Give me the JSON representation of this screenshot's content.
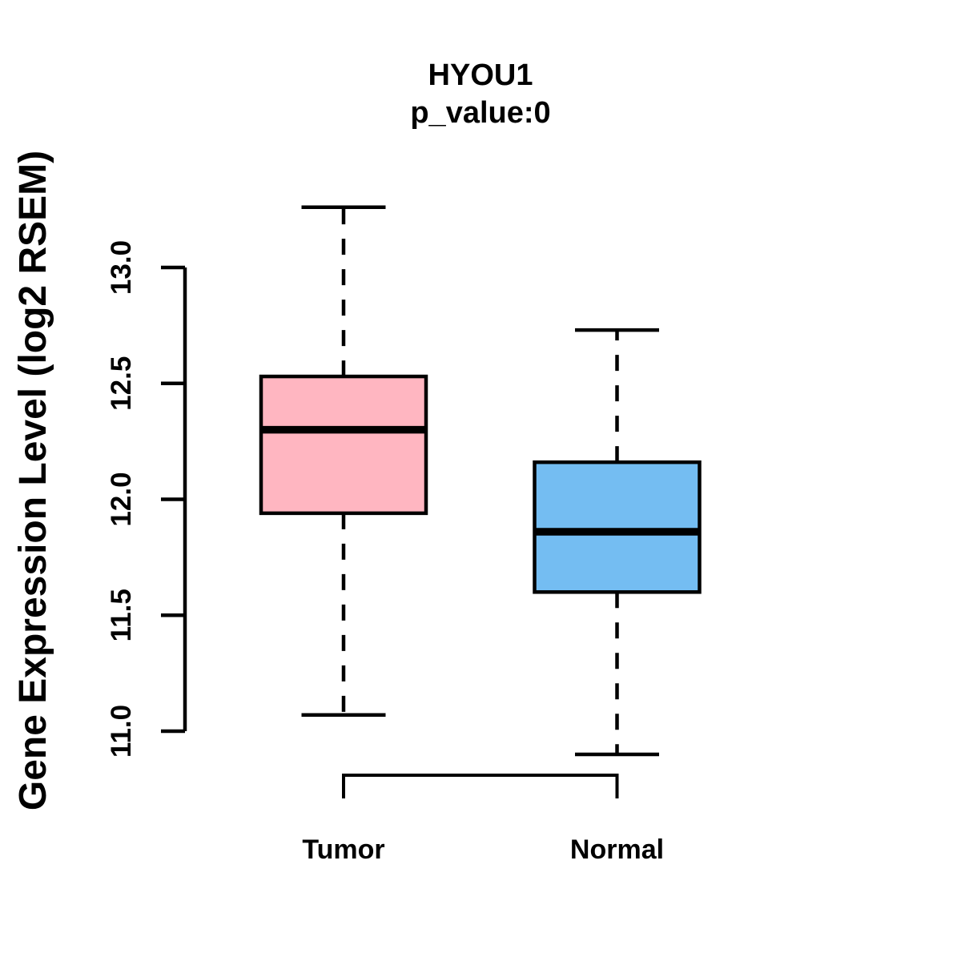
{
  "chart_data": {
    "type": "boxplot",
    "title": "HYOU1",
    "subtitle": "p_value:0",
    "ylabel": "Gene Expression Level (log2 RSEM)",
    "xlabel": "",
    "categories": [
      "Tumor",
      "Normal"
    ],
    "series": [
      {
        "name": "Tumor",
        "lower_whisker": 11.07,
        "q1": 11.94,
        "median": 12.3,
        "q3": 12.53,
        "upper_whisker": 13.26,
        "fill_color": "#FFB6C1"
      },
      {
        "name": "Normal",
        "lower_whisker": 10.9,
        "q1": 11.6,
        "median": 11.86,
        "q3": 12.16,
        "upper_whisker": 12.73,
        "fill_color": "#74BDF2"
      }
    ],
    "y_ticks": [
      {
        "value": 11.0,
        "label": "11.0"
      },
      {
        "value": 11.5,
        "label": "11.5"
      },
      {
        "value": 12.0,
        "label": "12.0"
      },
      {
        "value": 12.5,
        "label": "12.5"
      },
      {
        "value": 13.0,
        "label": "13.0"
      }
    ],
    "ylim": [
      10.6,
      13.4
    ],
    "grid": false,
    "legend": "none",
    "whisker_style": "dashed",
    "stroke_color": "#000000",
    "background_color": "#FFFFFF",
    "annotation_bracket": {
      "connects": [
        "Tumor",
        "Normal"
      ],
      "top_value": 10.81,
      "drop_to_value": 10.71
    }
  }
}
